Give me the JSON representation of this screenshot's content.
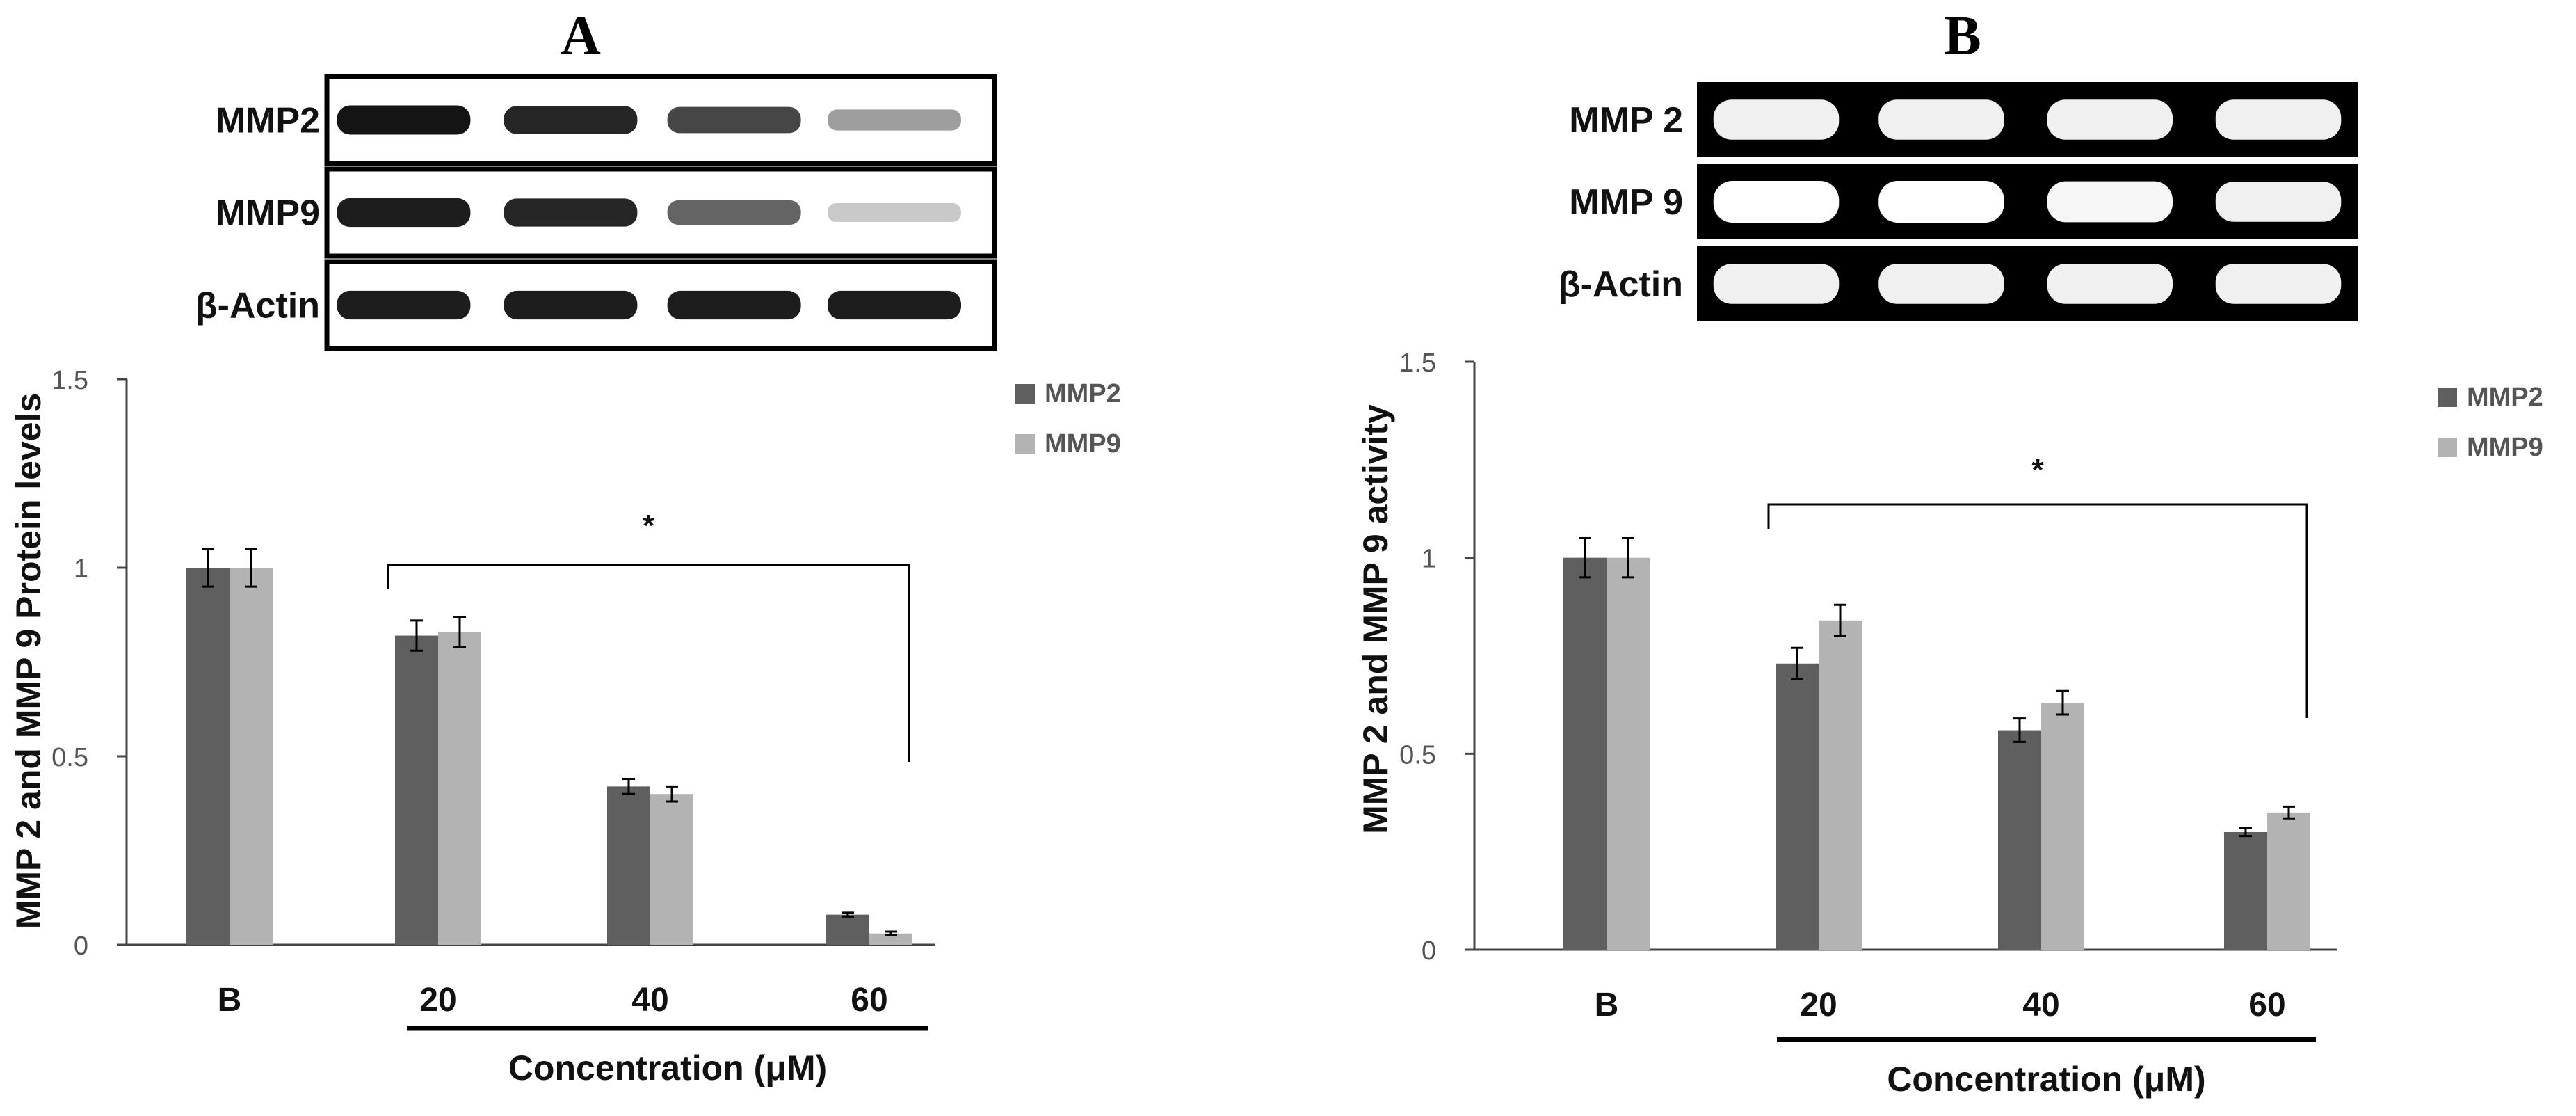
{
  "chart_data": [
    {
      "panel": "A",
      "type": "bar",
      "title": "",
      "xlabel": "Concentration (μM)",
      "ylabel": "MMP 2 and MMP 9 Protein levels",
      "categories": [
        "B",
        "20",
        "40",
        "60"
      ],
      "ylim": [
        0,
        1.5
      ],
      "yticks": [
        "0",
        "0.5",
        "1",
        "1.5"
      ],
      "grid": false,
      "legend_position": "top-right",
      "series": [
        {
          "name": "MMP2",
          "color": "#5f5f5f",
          "values": [
            1.0,
            0.82,
            0.42,
            0.08
          ],
          "errors": [
            0.05,
            0.04,
            0.02,
            0.005
          ]
        },
        {
          "name": "MMP9",
          "color": "#b3b3b3",
          "values": [
            1.0,
            0.83,
            0.4,
            0.03
          ],
          "errors": [
            0.05,
            0.04,
            0.02,
            0.005
          ]
        }
      ],
      "significance": {
        "label": "*",
        "from_category": "20",
        "to_category": "60"
      },
      "blot": {
        "style": "dark-bands-on-light",
        "rows": [
          {
            "label": "MMP2",
            "band_intensity": [
              1.0,
              0.9,
              0.75,
              0.3
            ]
          },
          {
            "label": "MMP9",
            "band_intensity": [
              0.95,
              0.9,
              0.6,
              0.1
            ]
          },
          {
            "label": "β-Actin",
            "band_intensity": [
              0.95,
              0.95,
              0.95,
              0.95
            ]
          }
        ]
      }
    },
    {
      "panel": "B",
      "type": "bar",
      "title": "",
      "xlabel": "Concentration (μM)",
      "ylabel": "MMP 2 and MMP 9 activity",
      "categories": [
        "B",
        "20",
        "40",
        "60"
      ],
      "ylim": [
        0,
        1.5
      ],
      "yticks": [
        "0",
        "0.5",
        "1",
        "1.5"
      ],
      "grid": false,
      "legend_position": "top-right",
      "series": [
        {
          "name": "MMP2",
          "color": "#5f5f5f",
          "values": [
            1.0,
            0.73,
            0.56,
            0.3
          ],
          "errors": [
            0.05,
            0.04,
            0.03,
            0.01
          ]
        },
        {
          "name": "MMP9",
          "color": "#b3b3b3",
          "values": [
            1.0,
            0.84,
            0.63,
            0.35
          ],
          "errors": [
            0.05,
            0.04,
            0.03,
            0.015
          ]
        }
      ],
      "significance": {
        "label": "*",
        "from_category": "20",
        "to_category": "60"
      },
      "blot": {
        "style": "light-bands-on-dark",
        "rows": [
          {
            "label": "MMP 2",
            "band_intensity": [
              0.9,
              0.9,
              0.9,
              0.9
            ]
          },
          {
            "label": "MMP 9",
            "band_intensity": [
              1.0,
              1.0,
              0.95,
              0.9
            ]
          },
          {
            "label": "β-Actin",
            "band_intensity": [
              0.9,
              0.9,
              0.9,
              0.9
            ]
          }
        ]
      }
    }
  ]
}
